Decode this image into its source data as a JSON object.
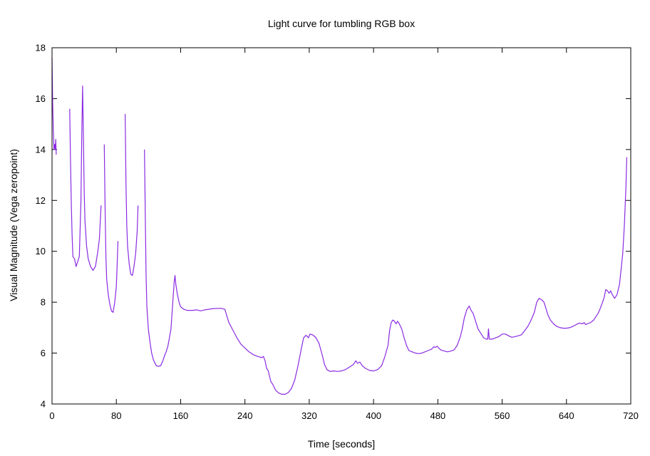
{
  "chart_data": {
    "type": "line",
    "title": "Light curve for tumbling RGB box",
    "xlabel": "Time [seconds]",
    "ylabel": "Visual Magnitude (Vega zeropoint)",
    "xlim": [
      0,
      720
    ],
    "ylim": [
      4,
      18
    ],
    "xticks": [
      0,
      80,
      160,
      240,
      320,
      400,
      480,
      560,
      640,
      720
    ],
    "yticks": [
      4,
      6,
      8,
      10,
      12,
      14,
      16,
      18
    ],
    "grid": false,
    "legend": "none",
    "line_color": "#8a2be2",
    "segments": [
      [
        [
          0,
          17.6
        ],
        [
          0.8,
          15.8
        ],
        [
          1.6,
          14.8
        ],
        [
          2.4,
          14.0
        ],
        [
          3.2,
          14.2
        ],
        [
          4.0,
          14.0
        ],
        [
          4.6,
          14.4
        ],
        [
          5.2,
          13.8
        ]
      ],
      [
        [
          22,
          15.6
        ],
        [
          23,
          13.6
        ],
        [
          24,
          11.8
        ],
        [
          25,
          10.6
        ],
        [
          26,
          9.8
        ],
        [
          28,
          9.7
        ],
        [
          30,
          9.4
        ],
        [
          32,
          9.6
        ],
        [
          34,
          9.8
        ],
        [
          36,
          12.0
        ],
        [
          37,
          14.5
        ],
        [
          38,
          16.5
        ],
        [
          39,
          14.6
        ],
        [
          40,
          12.4
        ],
        [
          41,
          11.2
        ],
        [
          43,
          10.2
        ],
        [
          45,
          9.7
        ],
        [
          48,
          9.4
        ],
        [
          51,
          9.25
        ],
        [
          54,
          9.4
        ],
        [
          57,
          10.0
        ],
        [
          59,
          10.5
        ],
        [
          60,
          11.2
        ],
        [
          61,
          11.8
        ]
      ],
      [
        [
          65,
          14.2
        ],
        [
          66,
          11.8
        ],
        [
          67,
          9.8
        ],
        [
          68,
          8.9
        ],
        [
          70,
          8.3
        ],
        [
          72,
          7.9
        ],
        [
          74,
          7.65
        ],
        [
          76,
          7.6
        ],
        [
          78,
          8.0
        ],
        [
          80,
          8.6
        ],
        [
          81,
          9.5
        ],
        [
          82,
          10.4
        ]
      ],
      [
        [
          91,
          15.4
        ],
        [
          92,
          12.6
        ],
        [
          93,
          11.0
        ],
        [
          94,
          10.2
        ],
        [
          96,
          9.5
        ],
        [
          98,
          9.1
        ],
        [
          100,
          9.05
        ],
        [
          102,
          9.4
        ],
        [
          104,
          9.9
        ],
        [
          106,
          10.8
        ],
        [
          107,
          11.8
        ]
      ],
      [
        [
          115,
          14.0
        ],
        [
          116,
          11.5
        ],
        [
          117,
          9.0
        ],
        [
          118,
          7.8
        ],
        [
          120,
          6.9
        ],
        [
          122,
          6.4
        ],
        [
          124,
          6.0
        ],
        [
          126,
          5.75
        ],
        [
          128,
          5.6
        ],
        [
          130,
          5.5
        ],
        [
          132,
          5.48
        ],
        [
          135,
          5.5
        ],
        [
          138,
          5.7
        ],
        [
          140,
          5.9
        ],
        [
          142,
          6.05
        ],
        [
          144,
          6.25
        ],
        [
          146,
          6.6
        ],
        [
          148,
          6.95
        ],
        [
          150,
          7.9
        ],
        [
          152,
          8.8
        ],
        [
          153,
          9.05
        ],
        [
          154,
          8.7
        ],
        [
          156,
          8.3
        ],
        [
          158,
          8.0
        ],
        [
          160,
          7.82
        ],
        [
          164,
          7.72
        ],
        [
          168,
          7.68
        ],
        [
          175,
          7.68
        ],
        [
          180,
          7.7
        ],
        [
          185,
          7.66
        ],
        [
          190,
          7.7
        ],
        [
          195,
          7.72
        ],
        [
          200,
          7.75
        ],
        [
          210,
          7.76
        ],
        [
          215,
          7.72
        ],
        [
          220,
          7.2
        ],
        [
          225,
          6.9
        ],
        [
          230,
          6.6
        ],
        [
          235,
          6.35
        ],
        [
          240,
          6.2
        ],
        [
          245,
          6.05
        ],
        [
          250,
          5.95
        ],
        [
          255,
          5.88
        ],
        [
          258,
          5.85
        ],
        [
          261,
          5.82
        ],
        [
          263,
          5.87
        ],
        [
          265,
          5.7
        ],
        [
          267,
          5.4
        ],
        [
          269,
          5.3
        ],
        [
          272,
          4.9
        ],
        [
          275,
          4.75
        ],
        [
          278,
          4.55
        ],
        [
          282,
          4.43
        ],
        [
          286,
          4.38
        ],
        [
          290,
          4.38
        ],
        [
          294,
          4.45
        ],
        [
          298,
          4.62
        ],
        [
          302,
          4.95
        ],
        [
          306,
          5.5
        ],
        [
          310,
          6.15
        ],
        [
          313,
          6.6
        ],
        [
          316,
          6.7
        ],
        [
          319,
          6.6
        ],
        [
          321,
          6.75
        ],
        [
          324,
          6.72
        ],
        [
          328,
          6.62
        ],
        [
          332,
          6.4
        ],
        [
          336,
          5.95
        ],
        [
          339,
          5.55
        ],
        [
          342,
          5.35
        ],
        [
          346,
          5.28
        ],
        [
          350,
          5.3
        ],
        [
          355,
          5.28
        ],
        [
          360,
          5.3
        ],
        [
          365,
          5.35
        ],
        [
          370,
          5.45
        ],
        [
          375,
          5.55
        ],
        [
          378,
          5.7
        ],
        [
          380,
          5.6
        ],
        [
          383,
          5.65
        ],
        [
          386,
          5.5
        ],
        [
          390,
          5.4
        ],
        [
          395,
          5.32
        ],
        [
          400,
          5.3
        ],
        [
          405,
          5.35
        ],
        [
          410,
          5.5
        ],
        [
          414,
          5.85
        ],
        [
          418,
          6.3
        ],
        [
          420,
          6.9
        ],
        [
          422,
          7.2
        ],
        [
          424,
          7.3
        ],
        [
          426,
          7.25
        ],
        [
          428,
          7.15
        ],
        [
          430,
          7.25
        ],
        [
          432,
          7.15
        ],
        [
          435,
          6.95
        ],
        [
          438,
          6.6
        ],
        [
          441,
          6.3
        ],
        [
          444,
          6.1
        ],
        [
          448,
          6.05
        ],
        [
          452,
          6.0
        ],
        [
          456,
          5.98
        ],
        [
          460,
          6.0
        ],
        [
          464,
          6.05
        ],
        [
          468,
          6.1
        ],
        [
          472,
          6.15
        ],
        [
          475,
          6.25
        ],
        [
          477,
          6.22
        ],
        [
          479,
          6.27
        ],
        [
          481,
          6.2
        ],
        [
          484,
          6.12
        ],
        [
          488,
          6.08
        ],
        [
          492,
          6.05
        ],
        [
          496,
          6.08
        ],
        [
          500,
          6.12
        ],
        [
          504,
          6.3
        ],
        [
          508,
          6.65
        ],
        [
          510,
          6.9
        ],
        [
          513,
          7.4
        ],
        [
          516,
          7.7
        ],
        [
          519,
          7.85
        ],
        [
          521,
          7.7
        ],
        [
          524,
          7.55
        ],
        [
          527,
          7.25
        ],
        [
          530,
          6.95
        ],
        [
          534,
          6.75
        ],
        [
          537,
          6.6
        ],
        [
          540,
          6.55
        ],
        [
          542,
          6.55
        ],
        [
          543,
          6.95
        ],
        [
          544,
          6.55
        ],
        [
          548,
          6.55
        ],
        [
          552,
          6.6
        ],
        [
          556,
          6.65
        ],
        [
          560,
          6.75
        ],
        [
          564,
          6.75
        ],
        [
          568,
          6.68
        ],
        [
          572,
          6.62
        ],
        [
          576,
          6.65
        ],
        [
          580,
          6.68
        ],
        [
          584,
          6.72
        ],
        [
          588,
          6.88
        ],
        [
          592,
          7.05
        ],
        [
          596,
          7.3
        ],
        [
          600,
          7.6
        ],
        [
          603,
          8.0
        ],
        [
          606,
          8.15
        ],
        [
          609,
          8.1
        ],
        [
          612,
          8.0
        ],
        [
          614,
          7.8
        ],
        [
          617,
          7.5
        ],
        [
          620,
          7.3
        ],
        [
          624,
          7.15
        ],
        [
          628,
          7.05
        ],
        [
          632,
          7.0
        ],
        [
          636,
          6.98
        ],
        [
          640,
          6.98
        ],
        [
          644,
          7.0
        ],
        [
          648,
          7.05
        ],
        [
          652,
          7.12
        ],
        [
          656,
          7.18
        ],
        [
          660,
          7.15
        ],
        [
          662,
          7.2
        ],
        [
          664,
          7.12
        ],
        [
          666,
          7.15
        ],
        [
          670,
          7.2
        ],
        [
          674,
          7.3
        ],
        [
          677,
          7.45
        ],
        [
          680,
          7.6
        ],
        [
          682,
          7.75
        ],
        [
          685,
          8.0
        ],
        [
          687,
          8.2
        ],
        [
          689,
          8.5
        ],
        [
          691,
          8.45
        ],
        [
          693,
          8.35
        ],
        [
          695,
          8.45
        ],
        [
          697,
          8.3
        ],
        [
          700,
          8.15
        ],
        [
          703,
          8.3
        ],
        [
          706,
          8.7
        ],
        [
          708,
          9.3
        ],
        [
          710,
          9.9
        ],
        [
          712,
          11.0
        ],
        [
          714,
          12.5
        ],
        [
          715,
          13.7
        ]
      ]
    ]
  }
}
